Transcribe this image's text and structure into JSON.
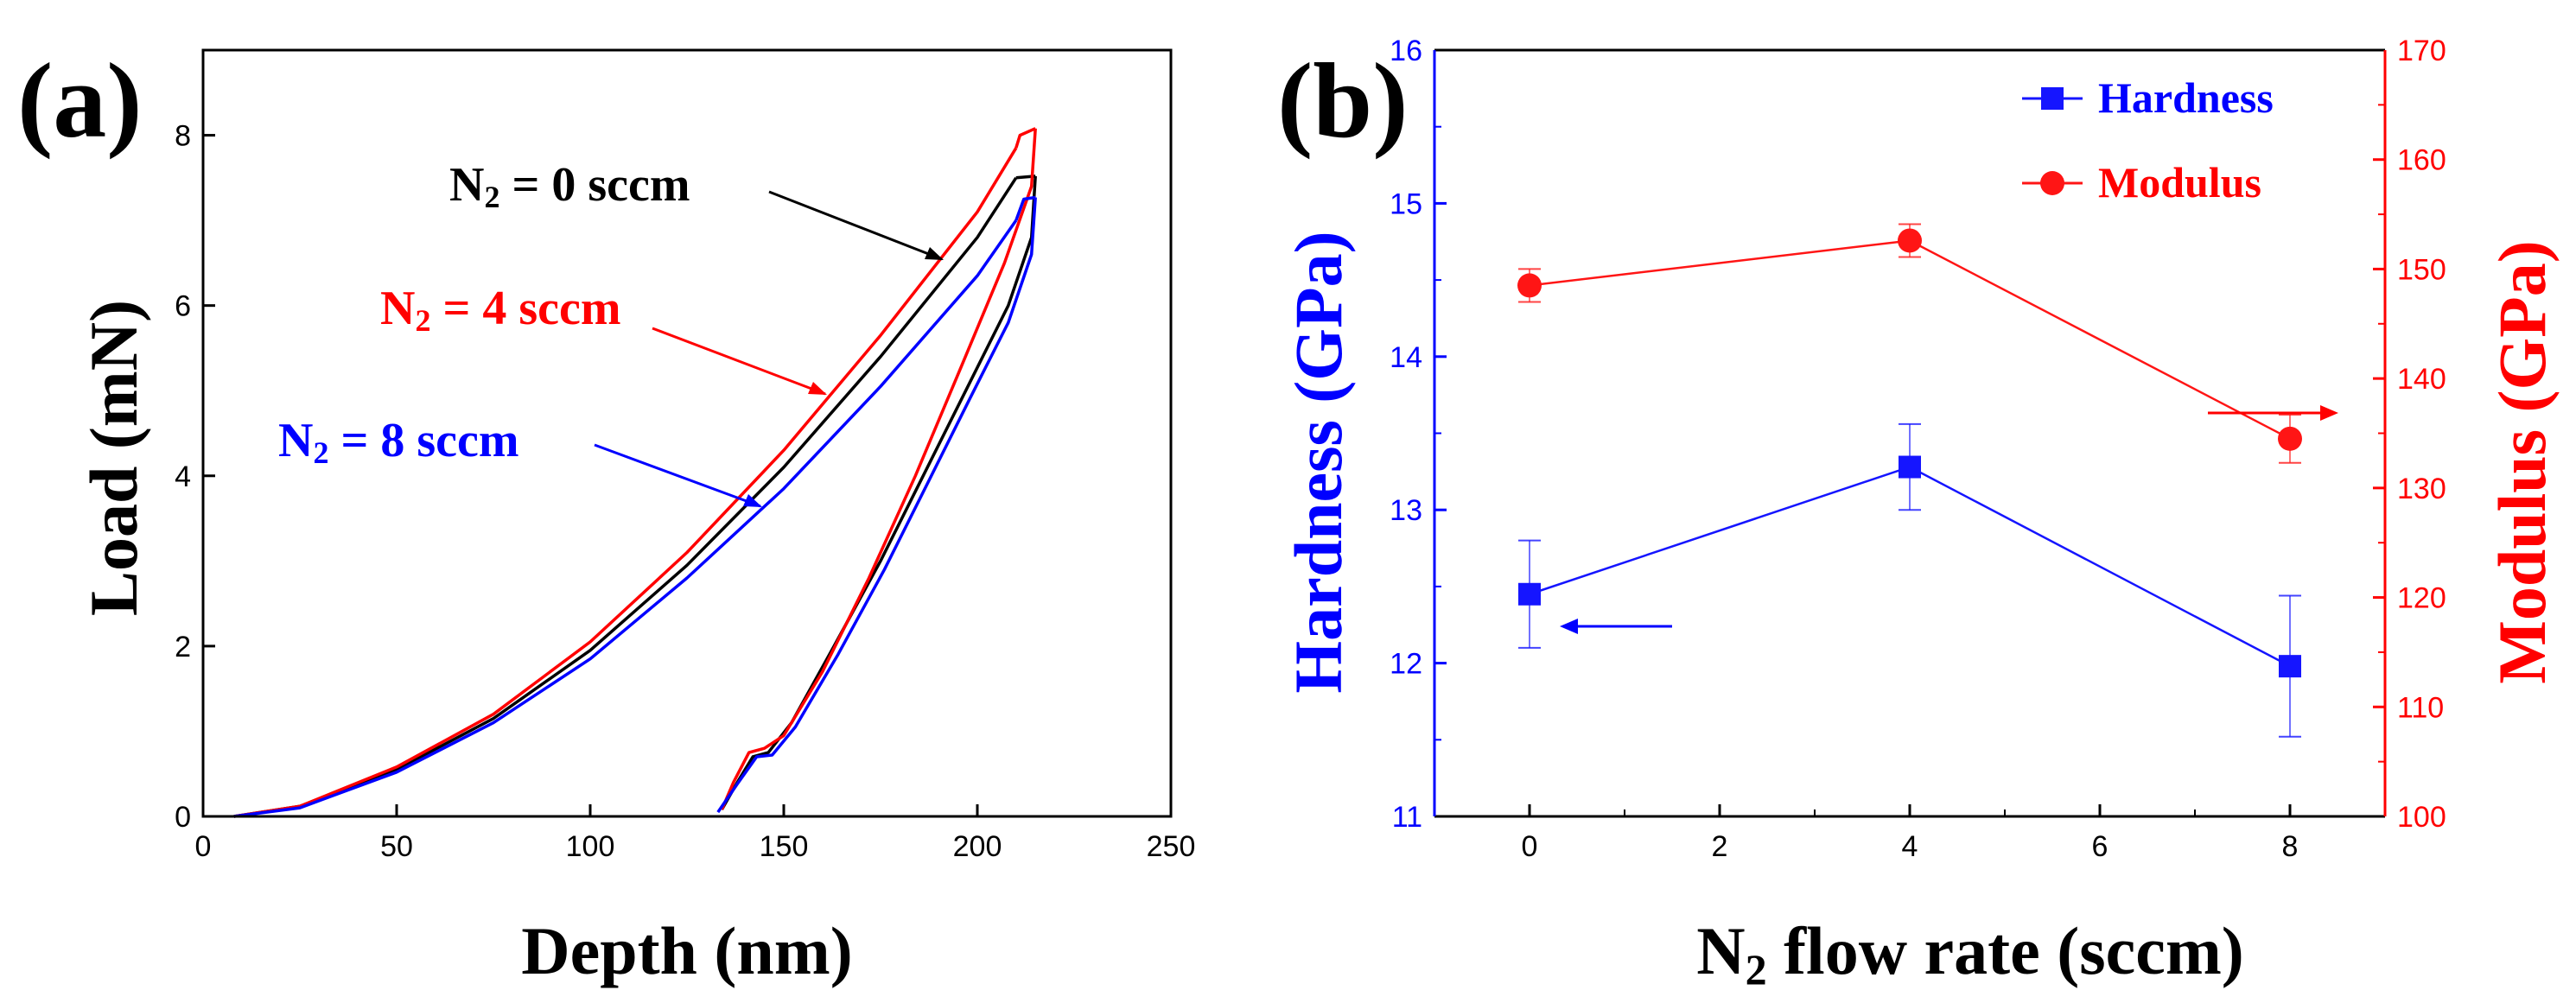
{
  "chart_data": [
    {
      "type": "line",
      "panel_label": "(a)",
      "xlabel": "Depth (nm)",
      "ylabel": "Load (mN)",
      "xlim": [
        0,
        250
      ],
      "ylim": [
        0,
        9
      ],
      "xticks": [
        "0",
        "50",
        "100",
        "150",
        "200",
        "250"
      ],
      "yticks": [
        "0",
        "2",
        "4",
        "6",
        "8"
      ],
      "grid": false,
      "series": [
        {
          "name": "N2 = 0 sccm",
          "label_main": "N",
          "label_sub": "2",
          "label_rest": " = 0 sccm",
          "color": "#000000",
          "loading": [
            [
              8,
              0
            ],
            [
              25,
              0.12
            ],
            [
              50,
              0.55
            ],
            [
              75,
              1.15
            ],
            [
              100,
              1.95
            ],
            [
              125,
              2.95
            ],
            [
              150,
              4.1
            ],
            [
              175,
              5.4
            ],
            [
              200,
              6.8
            ],
            [
              210,
              7.5
            ]
          ],
          "hold": [
            [
              210,
              7.5
            ],
            [
              215,
              7.52
            ]
          ],
          "unloading": [
            [
              215,
              7.52
            ],
            [
              214,
              6.8
            ],
            [
              208,
              6.0
            ],
            [
              197,
              5.0
            ],
            [
              186,
              4.0
            ],
            [
              175,
              3.0
            ],
            [
              163,
              2.0
            ],
            [
              152,
              1.1
            ],
            [
              146,
              0.75
            ],
            [
              142,
              0.7
            ],
            [
              138,
              0.4
            ],
            [
              134,
              0.08
            ]
          ]
        },
        {
          "name": "N2 = 4 sccm",
          "label_main": "N",
          "label_sub": "2",
          "label_rest": " = 4 sccm",
          "color": "#ff0000",
          "loading": [
            [
              8,
              0
            ],
            [
              25,
              0.12
            ],
            [
              50,
              0.58
            ],
            [
              75,
              1.2
            ],
            [
              100,
              2.05
            ],
            [
              125,
              3.1
            ],
            [
              150,
              4.3
            ],
            [
              175,
              5.65
            ],
            [
              200,
              7.1
            ],
            [
              210,
              7.85
            ]
          ],
          "hold": [
            [
              210,
              7.85
            ],
            [
              211,
              8.0
            ],
            [
              215,
              8.08
            ]
          ],
          "unloading": [
            [
              215,
              8.08
            ],
            [
              214,
              7.4
            ],
            [
              207,
              6.5
            ],
            [
              196,
              5.3
            ],
            [
              184,
              4.0
            ],
            [
              172,
              2.8
            ],
            [
              160,
              1.7
            ],
            [
              150,
              0.95
            ],
            [
              145,
              0.8
            ],
            [
              141,
              0.75
            ],
            [
              137,
              0.4
            ],
            [
              134,
              0.08
            ]
          ]
        },
        {
          "name": "N2 = 8 sccm",
          "label_main": "N",
          "label_sub": "2",
          "label_rest": " = 8 sccm",
          "color": "#0000ff",
          "loading": [
            [
              8,
              0
            ],
            [
              25,
              0.1
            ],
            [
              50,
              0.52
            ],
            [
              75,
              1.1
            ],
            [
              100,
              1.85
            ],
            [
              125,
              2.8
            ],
            [
              150,
              3.85
            ],
            [
              175,
              5.05
            ],
            [
              200,
              6.35
            ],
            [
              210,
              7.0
            ]
          ],
          "hold": [
            [
              210,
              7.0
            ],
            [
              212,
              7.25
            ],
            [
              215,
              7.27
            ]
          ],
          "unloading": [
            [
              215,
              7.27
            ],
            [
              214,
              6.6
            ],
            [
              208,
              5.8
            ],
            [
              198,
              4.9
            ],
            [
              187,
              3.9
            ],
            [
              176,
              2.9
            ],
            [
              164,
              1.9
            ],
            [
              153,
              1.05
            ],
            [
              147,
              0.72
            ],
            [
              143,
              0.7
            ],
            [
              138,
              0.38
            ],
            [
              133,
              0.05
            ]
          ]
        }
      ]
    },
    {
      "type": "line",
      "panel_label": "(b)",
      "xlabel_main": "N",
      "xlabel_sub": "2",
      "xlabel_rest": " flow rate (sccm)",
      "xlim": [
        -1,
        9
      ],
      "xticks": [
        "0",
        "2",
        "4",
        "6",
        "8"
      ],
      "ylabel_left": "Hardness (GPa)",
      "ylabel_right": "Modulus (GPa)",
      "ylim_left": [
        11,
        16
      ],
      "ylim_right": [
        100,
        170
      ],
      "yticks_left": [
        "11",
        "12",
        "13",
        "14",
        "15",
        "16"
      ],
      "yticks_right": [
        "100",
        "110",
        "120",
        "130",
        "140",
        "150",
        "160",
        "170"
      ],
      "left_color": "#0000ff",
      "right_color": "#ff0000",
      "legend_position": "top-right",
      "series": [
        {
          "name": "Hardness",
          "axis": "left",
          "marker": "square",
          "color": "#1515ff",
          "x": [
            0,
            4,
            8
          ],
          "y": [
            12.45,
            13.28,
            11.98
          ],
          "err": [
            0.35,
            0.28,
            0.46
          ]
        },
        {
          "name": "Modulus",
          "axis": "right",
          "marker": "circle",
          "color": "#ff1515",
          "x": [
            0,
            4,
            8
          ],
          "y": [
            148.5,
            152.6,
            134.5
          ],
          "err": [
            1.5,
            1.5,
            2.2
          ]
        }
      ]
    }
  ]
}
